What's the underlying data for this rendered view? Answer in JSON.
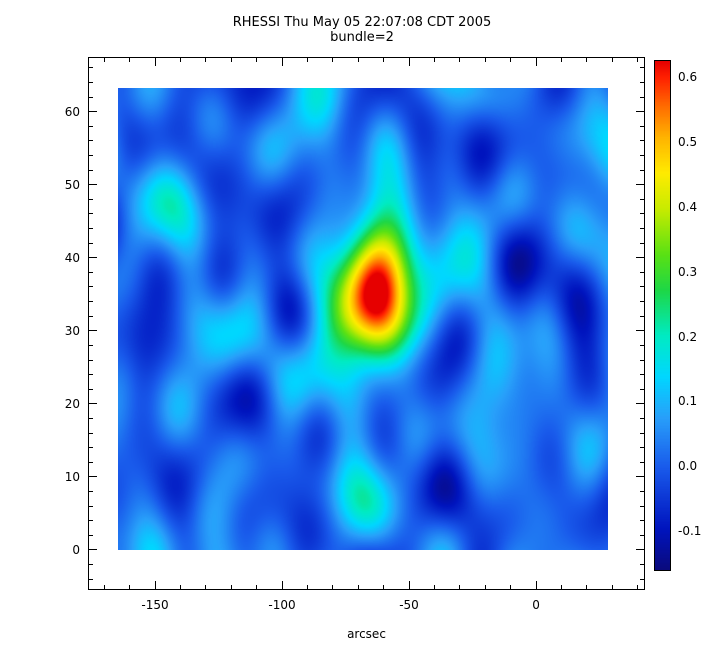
{
  "title": "RHESSI Thu May 05 22:07:08 CDT 2005",
  "subtitle": "bundle=2",
  "xlabel": "arcsec",
  "chart_data": {
    "type": "heatmap",
    "title": "RHESSI Thu May 05 22:07:08 CDT 2005",
    "subtitle": "bundle=2",
    "xlabel": "arcsec",
    "ylabel": "",
    "x_axis": {
      "range": [
        -176.4,
        42.9
      ],
      "major_ticks": [
        -150,
        -100,
        -50,
        0
      ],
      "major_labels": [
        "-150",
        "-100",
        "-50",
        "0"
      ],
      "minor_step": 10
    },
    "y_axis": {
      "range": [
        -5.5,
        67.5
      ],
      "major_ticks": [
        0,
        10,
        20,
        30,
        40,
        50,
        60
      ],
      "major_labels": [
        "0",
        "10",
        "20",
        "30",
        "40",
        "50",
        "60"
      ],
      "minor_step": 2
    },
    "image_extent": {
      "x": [
        -164.6,
        28.3
      ],
      "y": [
        0,
        63.3
      ]
    },
    "value_range": [
      -0.16,
      0.625
    ],
    "colorbar": {
      "position": "right",
      "major_ticks": [
        0.6,
        0.5,
        0.4,
        0.3,
        0.2,
        0.1,
        0.0,
        -0.1
      ],
      "major_labels": [
        "0.6",
        "0.5",
        "0.4",
        "0.3",
        "0.2",
        "0.1",
        "0.0",
        "-0.1"
      ],
      "minor_step": 0.02
    },
    "sources": [
      {
        "x": -60,
        "y": 36,
        "amp": 0.6,
        "sx": 9,
        "sy": 7
      },
      {
        "x": -75,
        "y": 31.5,
        "amp": 0.22,
        "sx": 9,
        "sy": 6
      }
    ],
    "background_base": 0.02,
    "noise_waves": [
      {
        "amp": 0.03,
        "kx": 0.12,
        "ky": 0.26,
        "ph": 1.0
      },
      {
        "amp": 0.028,
        "kx": 0.1,
        "ky": -0.3,
        "ph": 4.2
      },
      {
        "amp": 0.02,
        "kx": 0.05,
        "ky": 0.4,
        "ph": 2.6
      },
      {
        "amp": 0.026,
        "kx": 0.15,
        "ky": -0.18,
        "ph": 0.7
      },
      {
        "amp": 0.02,
        "kx": 0.22,
        "ky": 0.08,
        "ph": 3.9
      },
      {
        "amp": 0.03,
        "kx": 0.07,
        "ky": 0.14,
        "ph": 5.3
      },
      {
        "amp": 0.016,
        "kx": 0.18,
        "ky": -0.36,
        "ph": 1.9
      },
      {
        "amp": 0.013,
        "kx": 0.28,
        "ky": 0.22,
        "ph": 5.8
      },
      {
        "amp": 0.028,
        "kx": 0.11,
        "ky": 0.05,
        "ph": 2.3
      },
      {
        "amp": 0.024,
        "kx": 0.04,
        "ky": -0.24,
        "ph": 0.2
      },
      {
        "amp": 0.015,
        "kx": 0.26,
        "ky": -0.1,
        "ph": 3.1
      },
      {
        "amp": 0.012,
        "kx": 0.09,
        "ky": 0.47,
        "ph": 4.8
      }
    ],
    "colormap_stops": [
      [
        0.0,
        10,
        10,
        125
      ],
      [
        0.08,
        0,
        20,
        190
      ],
      [
        0.2,
        25,
        90,
        235
      ],
      [
        0.3,
        40,
        160,
        250
      ],
      [
        0.38,
        0,
        215,
        255
      ],
      [
        0.46,
        0,
        235,
        195
      ],
      [
        0.55,
        30,
        215,
        70
      ],
      [
        0.62,
        90,
        225,
        20
      ],
      [
        0.71,
        200,
        235,
        0
      ],
      [
        0.78,
        255,
        235,
        0
      ],
      [
        0.85,
        255,
        180,
        0
      ],
      [
        0.91,
        255,
        110,
        0
      ],
      [
        0.97,
        255,
        30,
        0
      ],
      [
        1.0,
        230,
        0,
        0
      ]
    ],
    "grid": false,
    "plot_background": "#ffffff",
    "axis_color": "#000000"
  }
}
